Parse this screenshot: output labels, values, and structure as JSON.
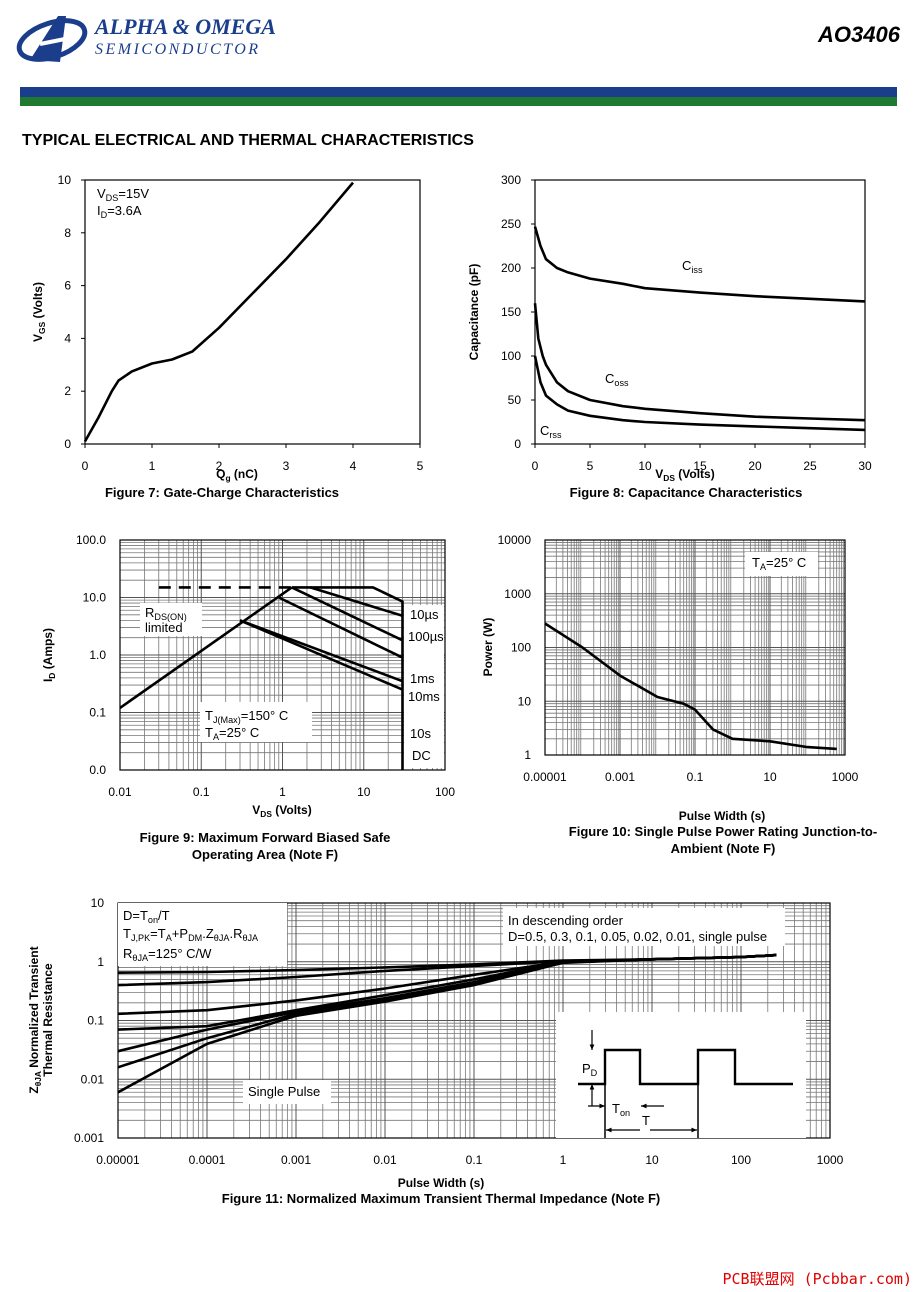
{
  "header": {
    "company": "ALPHA & OMEGA",
    "division": "SEMICONDUCTOR",
    "part": "AO3406"
  },
  "section_title": "TYPICAL ELECTRICAL AND THERMAL CHARACTERISTICS",
  "watermark": "PCB联盟网 (Pcbbar.com)",
  "chart_data": [
    {
      "type": "line",
      "title": [
        "Figure 7: Gate-Charge Characteristics"
      ],
      "xlabel": [
        "Q",
        "g",
        " (nC)"
      ],
      "ylabel": [
        "V",
        "GS",
        " (Volts)"
      ],
      "xlim": [
        0,
        5
      ],
      "ylim": [
        0,
        10
      ],
      "xticks": [
        0,
        1,
        2,
        3,
        4,
        5
      ],
      "yticks": [
        0,
        2,
        4,
        6,
        8,
        10
      ],
      "grid": false,
      "annotations": [
        [
          "V",
          "DS",
          "=15V"
        ],
        [
          "I",
          "D",
          "=3.6A"
        ]
      ],
      "series": [
        {
          "color": "#000000",
          "x": [
            0,
            0.2,
            0.4,
            0.5,
            0.7,
            1,
            1.3,
            1.6,
            2,
            2.5,
            3,
            3.5,
            4
          ],
          "values": [
            0.1,
            1,
            2,
            2.4,
            2.75,
            3.05,
            3.2,
            3.5,
            4.4,
            5.7,
            7,
            8.4,
            9.9
          ]
        }
      ]
    },
    {
      "type": "line",
      "title": [
        "Figure 8: Capacitance Characteristics"
      ],
      "xlabel": [
        "V",
        "DS",
        " (Volts)"
      ],
      "ylabel": "Capacitance (pF)",
      "xlim": [
        0,
        30
      ],
      "ylim": [
        0,
        300
      ],
      "xticks": [
        0,
        5,
        10,
        15,
        20,
        25,
        30
      ],
      "yticks": [
        0,
        50,
        100,
        150,
        200,
        250,
        300
      ],
      "grid": false,
      "series": [
        {
          "name": "Ciss",
          "color": "#000000",
          "x": [
            0,
            0.5,
            1,
            2,
            3,
            5,
            8,
            10,
            15,
            20,
            25,
            30
          ],
          "values": [
            247,
            225,
            210,
            200,
            195,
            188,
            182,
            177,
            172,
            168,
            165,
            162
          ]
        },
        {
          "name": "Coss",
          "color": "#000000",
          "x": [
            0,
            0.3,
            0.7,
            1,
            2,
            3,
            5,
            8,
            10,
            15,
            20,
            25,
            30
          ],
          "values": [
            160,
            120,
            100,
            90,
            70,
            60,
            50,
            43,
            40,
            35,
            31,
            29,
            27
          ]
        },
        {
          "name": "Crss",
          "color": "#000000",
          "x": [
            0,
            0.5,
            1,
            2,
            3,
            5,
            8,
            10,
            15,
            20,
            25,
            30
          ],
          "values": [
            100,
            70,
            55,
            45,
            38,
            32,
            27,
            25,
            22,
            20,
            18,
            16
          ]
        }
      ]
    },
    {
      "type": "line",
      "title": [
        "Figure 9: Maximum Forward Biased Safe",
        "Operating Area (Note F)"
      ],
      "xlabel": [
        "V",
        "DS",
        " (Volts)"
      ],
      "ylabel": [
        "I",
        "D",
        " (Amps)"
      ],
      "xlog": true,
      "ylog": true,
      "grid": true,
      "minor_grid": true,
      "xlim": [
        0.01,
        100
      ],
      "ylim": [
        0.01,
        100
      ],
      "xticks": [
        0.01,
        0.1,
        1,
        10,
        100
      ],
      "yticks": [
        {
          "value": 0.01,
          "label": "0.0"
        },
        0.1,
        {
          "value": 1,
          "label": "1.0"
        },
        {
          "value": 10,
          "label": "10.0"
        },
        {
          "value": 100,
          "label": "100.0"
        }
      ],
      "annotations": [
        [
          "R",
          "DS(ON)"
        ],
        "limited",
        [
          "T",
          "J(Max)",
          "=150° C"
        ],
        [
          "T",
          "A",
          "=25° C"
        ]
      ],
      "series": [
        {
          "color": "#000000",
          "x": [
            0.01,
            1.3
          ],
          "values": [
            0.12,
            15
          ]
        },
        {
          "color": "#000000",
          "dashed": true,
          "x": [
            0.03,
            1.3
          ],
          "values": [
            15,
            15
          ]
        },
        {
          "name": "10µs",
          "color": "#000000",
          "x": [
            1.3,
            13,
            30,
            30
          ],
          "values": [
            15,
            15,
            8.5,
            0.01
          ]
        },
        {
          "name": "100µs",
          "color": "#000000",
          "x": [
            2.2,
            30
          ],
          "values": [
            15,
            4.8
          ]
        },
        {
          "name": "1ms",
          "color": "#000000",
          "x": [
            1.3,
            30
          ],
          "values": [
            15,
            1.8
          ]
        },
        {
          "name": "10ms",
          "color": "#000000",
          "x": [
            0.9,
            30
          ],
          "values": [
            10,
            0.9
          ]
        },
        {
          "name": "10s",
          "color": "#000000",
          "x": [
            0.3,
            30
          ],
          "values": [
            4,
            0.35
          ]
        },
        {
          "name": "DC",
          "color": "#000000",
          "x": [
            0.3,
            30
          ],
          "values": [
            4,
            0.25
          ]
        }
      ]
    },
    {
      "type": "line",
      "title": [
        "Figure 10: Single Pulse Power Rating Junction-to-",
        "Ambient (Note F)"
      ],
      "xlabel": "Pulse Width (s)",
      "ylabel": "Power (W)",
      "xlog": true,
      "ylog": true,
      "grid": true,
      "minor_grid": true,
      "xlim": [
        1e-05,
        1000
      ],
      "ylim": [
        1,
        10000
      ],
      "xticks": [
        1e-05,
        0.001,
        0.1,
        10,
        1000
      ],
      "yticks": [
        1,
        10,
        100,
        1000,
        10000
      ],
      "annotations": [
        [
          "T",
          "A",
          "=25° C"
        ]
      ],
      "series": [
        {
          "color": "#000000",
          "x": [
            1e-05,
            0.0001,
            0.001,
            0.01,
            0.05,
            0.1,
            0.3,
            1,
            10,
            100,
            600
          ],
          "values": [
            280,
            100,
            30,
            12,
            9,
            7,
            3,
            2,
            1.8,
            1.4,
            1.3
          ]
        }
      ]
    },
    {
      "type": "line",
      "title": [
        "Figure 11: Normalized Maximum Transient Thermal Impedance (Note F)"
      ],
      "xlabel": "Pulse Width (s)",
      "ylabel": [
        "Z",
        "θJA",
        " Normalized Transient"
      ],
      "ylabel_line2": "Thermal Resistance",
      "xlog": true,
      "ylog": true,
      "grid": true,
      "minor_grid": true,
      "xlim": [
        1e-05,
        1000
      ],
      "ylim": [
        0.001,
        10
      ],
      "xticks": [
        1e-05,
        0.0001,
        0.001,
        0.01,
        0.1,
        1,
        10,
        100,
        1000
      ],
      "yticks": [
        0.001,
        0.01,
        0.1,
        1,
        10
      ],
      "annotations": [
        [
          "D=T",
          "on",
          "/T"
        ],
        [
          "T",
          "J,PK",
          "=T",
          "A",
          "+P",
          "DM",
          ".Z",
          "θJA",
          ".R",
          "θJA"
        ],
        [
          "R",
          "θJA",
          "=125° C/W"
        ],
        "In descending order",
        "D=0.5, 0.3, 0.1, 0.05, 0.02, 0.01, single pulse",
        "Single Pulse"
      ],
      "inset_labels": [
        [
          "P",
          "D"
        ],
        [
          "T",
          "on"
        ],
        "T"
      ],
      "series": [
        {
          "color": "#000000",
          "x": [
            1e-05,
            0.0001,
            0.001,
            0.01,
            0.1,
            1,
            10,
            100,
            250
          ],
          "values": [
            0.65,
            0.67,
            0.72,
            0.8,
            0.9,
            1.05,
            1.1,
            1.2,
            1.3
          ]
        },
        {
          "color": "#000000",
          "x": [
            1e-05,
            0.0001,
            0.001,
            0.01,
            0.1,
            1,
            10,
            100,
            250
          ],
          "values": [
            0.4,
            0.45,
            0.55,
            0.7,
            0.85,
            1.02,
            1.1,
            1.2,
            1.3
          ]
        },
        {
          "color": "#000000",
          "x": [
            1e-05,
            0.0001,
            0.001,
            0.01,
            0.1,
            1,
            10,
            100,
            250
          ],
          "values": [
            0.13,
            0.15,
            0.22,
            0.35,
            0.6,
            1,
            1.1,
            1.2,
            1.3
          ]
        },
        {
          "color": "#000000",
          "x": [
            1e-05,
            0.0001,
            0.001,
            0.01,
            0.1,
            1,
            10,
            100,
            250
          ],
          "values": [
            0.07,
            0.08,
            0.15,
            0.27,
            0.5,
            1,
            1.1,
            1.2,
            1.3
          ]
        },
        {
          "color": "#000000",
          "x": [
            1e-05,
            0.0001,
            0.001,
            0.01,
            0.1,
            1,
            10,
            100,
            250
          ],
          "values": [
            0.03,
            0.07,
            0.14,
            0.24,
            0.45,
            0.98,
            1.1,
            1.2,
            1.3
          ]
        },
        {
          "color": "#000000",
          "x": [
            1e-05,
            0.0001,
            0.001,
            0.01,
            0.1,
            1,
            10,
            100,
            250
          ],
          "values": [
            0.016,
            0.05,
            0.13,
            0.22,
            0.42,
            0.97,
            1.1,
            1.2,
            1.3
          ]
        },
        {
          "color": "#000000",
          "x": [
            1e-05,
            0.0001,
            0.001,
            0.01,
            0.1,
            1,
            10,
            100,
            250
          ],
          "values": [
            0.006,
            0.04,
            0.12,
            0.21,
            0.4,
            0.96,
            1.1,
            1.2,
            1.3
          ]
        }
      ]
    }
  ]
}
